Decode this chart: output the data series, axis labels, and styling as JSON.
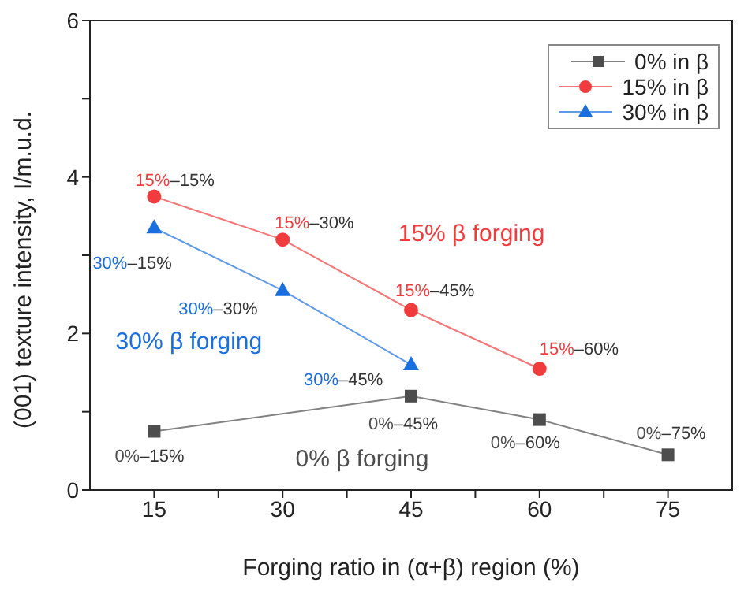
{
  "chart_data": {
    "type": "line",
    "xlabel": "Forging ratio in (α+β) region (%)",
    "ylabel": "(001) texture intensity, I/m.u.d.",
    "xlim": [
      7.5,
      82.5
    ],
    "xticks": [
      15,
      {
        "value": 22.5,
        "label": null
      },
      30,
      {
        "value": 37.5,
        "label": null
      },
      45,
      {
        "value": 52.5,
        "label": null
      },
      60,
      {
        "value": 67.5,
        "label": null
      },
      75
    ],
    "ylim": [
      0,
      6
    ],
    "yticks": [
      0,
      {
        "value": 1,
        "label": null
      },
      2,
      {
        "value": 3,
        "label": null
      },
      4,
      {
        "value": 5,
        "label": null
      },
      6
    ],
    "legend": "top right",
    "grid": false,
    "series": [
      {
        "name": "0% in β",
        "color": "#4d4d4d",
        "marker": "square",
        "x": [
          15,
          45,
          60,
          75
        ],
        "values": [
          0.75,
          1.2,
          0.9,
          0.45
        ]
      },
      {
        "name": "15% in β",
        "color": "#f03c3c",
        "marker": "circle",
        "x": [
          15,
          30,
          45,
          60
        ],
        "values": [
          3.75,
          3.2,
          2.3,
          1.55
        ]
      },
      {
        "name": "30% in β",
        "color": "#1a6fe0",
        "marker": "triangle",
        "x": [
          15,
          30,
          45
        ],
        "values": [
          3.35,
          2.55,
          1.6
        ]
      }
    ],
    "annotations": [
      {
        "text": "0%–15%",
        "x": 15,
        "y": 0.75
      },
      {
        "text": "0%–45%",
        "x": 45,
        "y": 1.2
      },
      {
        "text": "0%–60%",
        "x": 60,
        "y": 0.9
      },
      {
        "text": "0%–75%",
        "x": 75,
        "y": 0.45
      },
      {
        "text": "15%–15%",
        "x": 15,
        "y": 3.75
      },
      {
        "text": "15%–30%",
        "x": 30,
        "y": 3.2
      },
      {
        "text": "15%–45%",
        "x": 45,
        "y": 2.3
      },
      {
        "text": "15%–60%",
        "x": 60,
        "y": 1.55
      },
      {
        "text": "30%–15%",
        "x": 15,
        "y": 3.35
      },
      {
        "text": "30%–30%",
        "x": 30,
        "y": 2.55
      },
      {
        "text": "30%–45%",
        "x": 45,
        "y": 1.6
      },
      "15% β forging",
      "30% β forging",
      "0% β forging"
    ]
  }
}
